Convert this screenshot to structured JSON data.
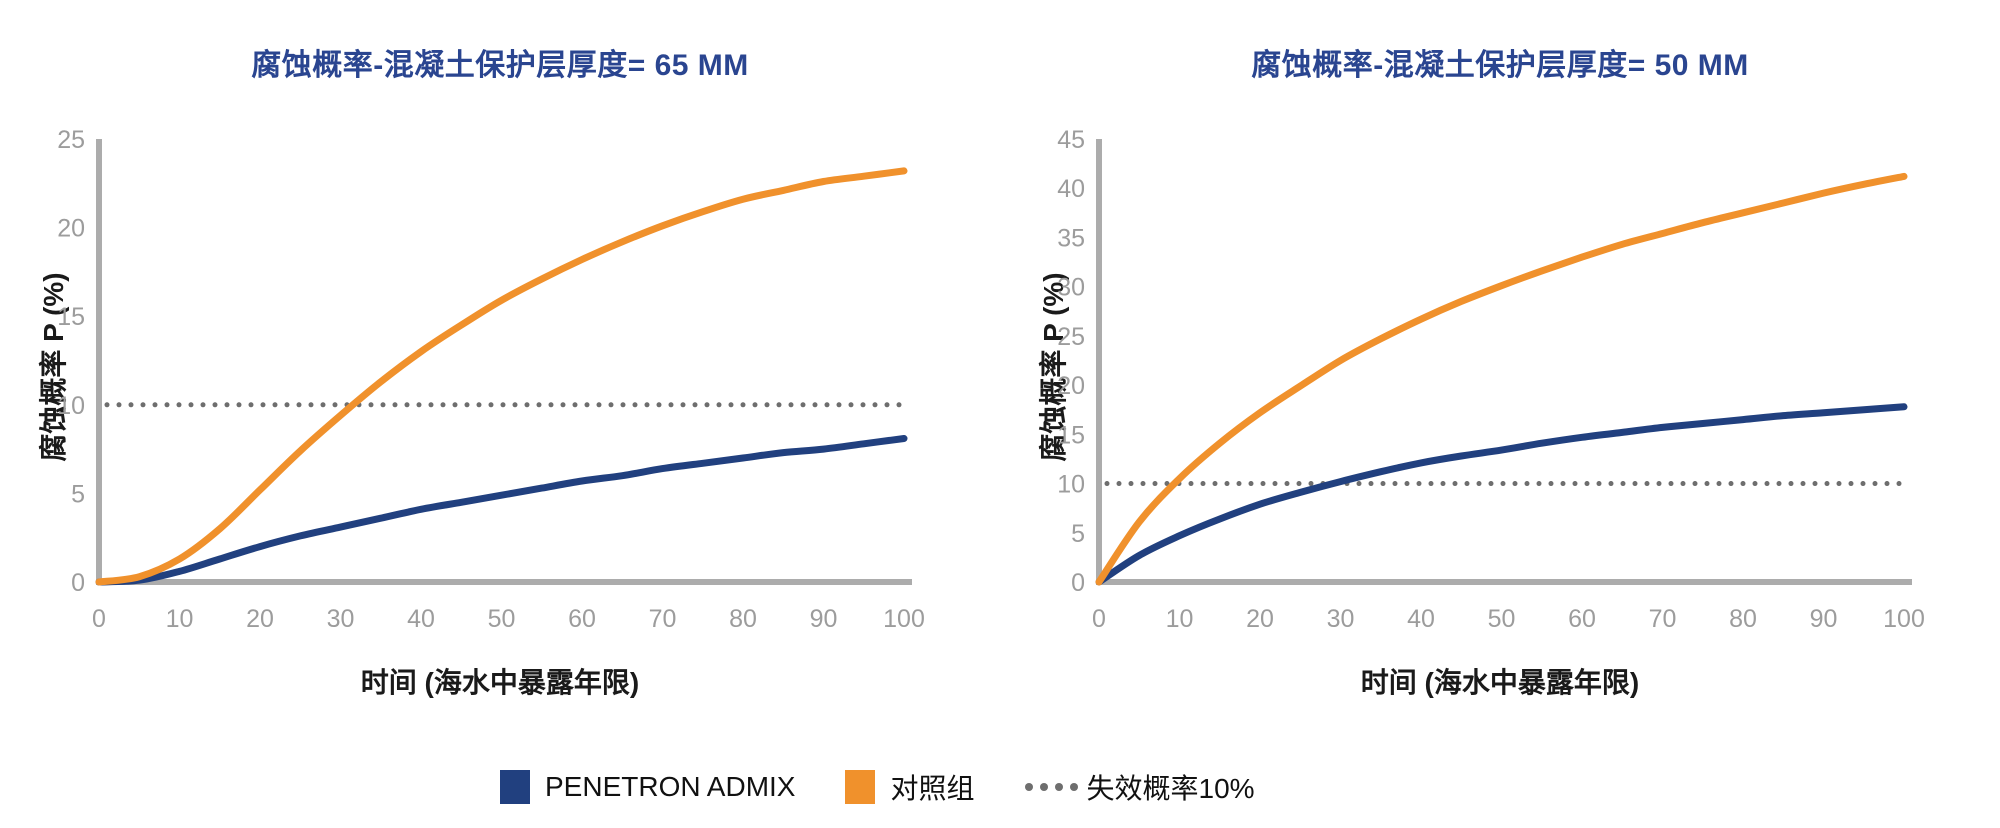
{
  "page": {
    "background": "#FFFFFF"
  },
  "colors": {
    "title_navy": "#2A4590",
    "penetron_navy": "#21407F",
    "control_orange": "#F0912C",
    "threshold_gray": "#6E6E6E",
    "axis_gray": "#ACACAC",
    "tick_gray": "#9C9C9C",
    "text_black": "#1A1A1A"
  },
  "chart_data": [
    {
      "type": "line",
      "title": "腐蚀概率-混凝土保护层厚度= 65 MM",
      "x_label": "时间 (海水中暴露年限)",
      "y_label": "腐蚀概率 P (%)",
      "xlim": [
        0,
        100
      ],
      "ylim": [
        0,
        25
      ],
      "x_ticks": [
        0,
        10,
        20,
        30,
        40,
        50,
        60,
        70,
        80,
        90,
        100
      ],
      "y_ticks": [
        0,
        5,
        10,
        15,
        20,
        25
      ],
      "grid": false,
      "legend_position": "bottom",
      "threshold": {
        "label": "失效概率10%",
        "value": 10,
        "color": "#6E6E6E"
      },
      "x": [
        0,
        5,
        10,
        15,
        20,
        25,
        30,
        35,
        40,
        45,
        50,
        55,
        60,
        65,
        70,
        75,
        80,
        85,
        90,
        95,
        100
      ],
      "series": [
        {
          "name": "PENETRON ADMIX",
          "color": "#21407F",
          "values": [
            0,
            0.1,
            0.6,
            1.3,
            2.0,
            2.6,
            3.1,
            3.6,
            4.1,
            4.5,
            4.9,
            5.3,
            5.7,
            6.0,
            6.4,
            6.7,
            7.0,
            7.3,
            7.5,
            7.8,
            8.1
          ]
        },
        {
          "name": "对照组",
          "color": "#F0912C",
          "values": [
            0,
            0.3,
            1.3,
            3.0,
            5.2,
            7.4,
            9.4,
            11.3,
            13.0,
            14.5,
            15.9,
            17.1,
            18.2,
            19.2,
            20.1,
            20.9,
            21.6,
            22.1,
            22.6,
            22.9,
            23.2
          ]
        }
      ]
    },
    {
      "type": "line",
      "title": "腐蚀概率-混凝土保护层厚度= 50 MM",
      "x_label": "时间 (海水中暴露年限)",
      "y_label": "腐蚀概率 P (%)",
      "xlim": [
        0,
        100
      ],
      "ylim": [
        0,
        45
      ],
      "x_ticks": [
        0,
        10,
        20,
        30,
        40,
        50,
        60,
        70,
        80,
        90,
        100
      ],
      "y_ticks": [
        0,
        5,
        10,
        15,
        20,
        25,
        30,
        35,
        40,
        45
      ],
      "grid": false,
      "legend_position": "bottom",
      "threshold": {
        "label": "失效概率10%",
        "value": 10,
        "color": "#6E6E6E"
      },
      "x": [
        0,
        5,
        10,
        15,
        20,
        25,
        30,
        35,
        40,
        45,
        50,
        55,
        60,
        65,
        70,
        75,
        80,
        85,
        90,
        95,
        100
      ],
      "series": [
        {
          "name": "PENETRON ADMIX",
          "color": "#21407F",
          "values": [
            0,
            2.7,
            4.7,
            6.4,
            7.9,
            9.1,
            10.2,
            11.2,
            12.1,
            12.8,
            13.4,
            14.1,
            14.7,
            15.2,
            15.7,
            16.1,
            16.5,
            16.9,
            17.2,
            17.5,
            17.8
          ]
        },
        {
          "name": "对照组",
          "color": "#F0912C",
          "values": [
            0,
            6.1,
            10.5,
            14.1,
            17.2,
            19.9,
            22.5,
            24.7,
            26.7,
            28.5,
            30.1,
            31.6,
            33.0,
            34.3,
            35.4,
            36.5,
            37.5,
            38.5,
            39.5,
            40.4,
            41.2
          ]
        }
      ]
    }
  ],
  "legend": {
    "items": [
      {
        "label": "PENETRON ADMIX",
        "swatch": "square",
        "color": "#21407F"
      },
      {
        "label": "对照组",
        "swatch": "square",
        "color": "#F0912C"
      },
      {
        "label": "失效概率10%",
        "swatch": "dotted",
        "color": "#6E6E6E"
      }
    ]
  }
}
